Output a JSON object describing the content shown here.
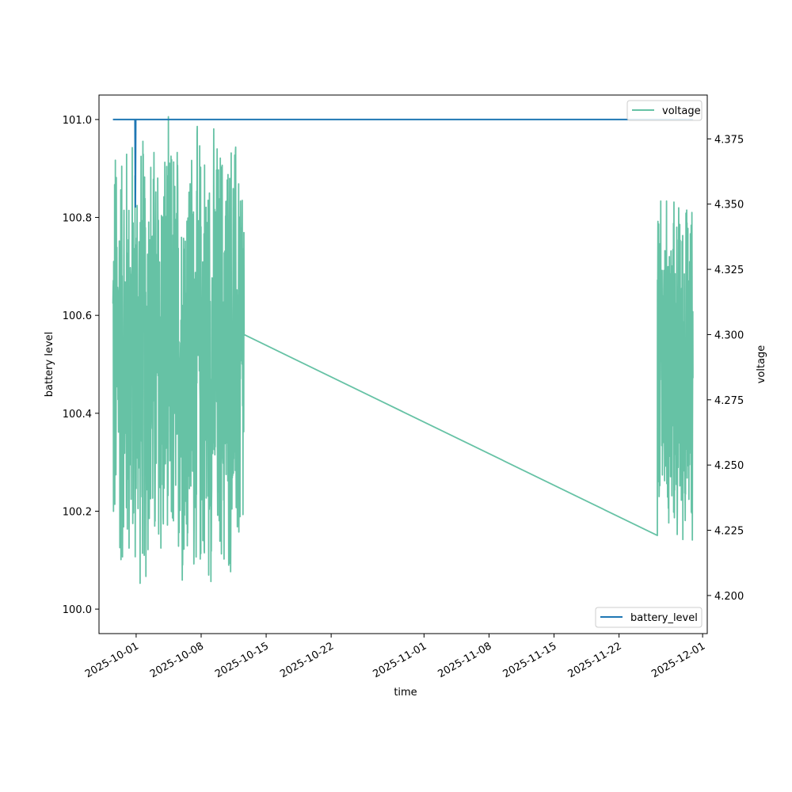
{
  "chart_data": {
    "type": "line",
    "xlabel": "time",
    "ylabel_left": "battery level",
    "ylabel_right": "voltage",
    "x_range": [
      "2025-09-27",
      "2025-12-01T12:00"
    ],
    "ylim_left": [
      99.95,
      101.05
    ],
    "ylim_right": [
      4.1854,
      4.3918
    ],
    "x_ticks": [
      "2025-10-01",
      "2025-10-08",
      "2025-10-15",
      "2025-10-22",
      "2025-11-01",
      "2025-11-08",
      "2025-11-15",
      "2025-11-22",
      "2025-12-01"
    ],
    "y_ticks_left": [
      "100.0",
      "100.2",
      "100.4",
      "100.6",
      "100.8",
      "101.0"
    ],
    "y_ticks_right": [
      "4.200",
      "4.225",
      "4.250",
      "4.275",
      "4.300",
      "4.325",
      "4.350",
      "4.375"
    ],
    "grid": false,
    "series": [
      {
        "name": "battery_level",
        "axis": "left",
        "color": "#1f77b4",
        "points": [
          [
            "2025-09-28T12:00",
            101.0
          ],
          [
            "2025-09-30T21:00",
            101.0
          ],
          [
            "2025-09-30T22:00",
            100.82
          ],
          [
            "2025-09-30T23:00",
            101.0
          ],
          [
            "2025-11-29T23:00",
            101.0
          ]
        ]
      },
      {
        "name": "voltage",
        "axis": "right",
        "color": "#66c2a5",
        "legend_position": "upper right",
        "segments": [
          {
            "start": "2025-09-28T12:00",
            "end": "2025-10-12T15:00",
            "min": 4.196,
            "max": 4.387
          },
          {
            "start": "2025-11-26T03:00",
            "end": "2025-11-29T23:00",
            "min": 4.214,
            "max": 4.358
          }
        ],
        "bridge": [
          [
            "2025-10-12T15:00",
            4.3
          ],
          [
            "2025-11-26T03:00",
            4.223
          ]
        ]
      }
    ],
    "legends": [
      {
        "label": "voltage",
        "position": "upper right"
      },
      {
        "label": "battery_level",
        "position": "lower right"
      }
    ]
  }
}
